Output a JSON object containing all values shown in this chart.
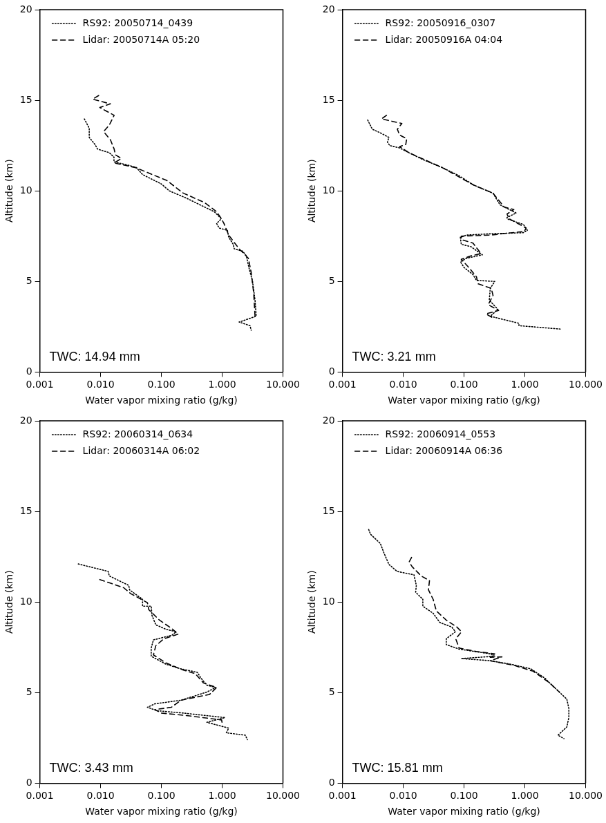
{
  "chart_data": [
    {
      "type": "line",
      "xlabel": "Water vapor mixing ratio (g/kg)",
      "ylabel": "Altitude (km)",
      "log": "x",
      "xlim": [
        0.001,
        10
      ],
      "xticks": [
        {
          "value": 0.001,
          "label": "0.001"
        },
        {
          "value": 0.01,
          "label": "0.010"
        },
        {
          "value": 0.1,
          "label": "0.100"
        },
        {
          "value": 1,
          "label": "1.000"
        },
        {
          "value": 10,
          "label": "10.000"
        }
      ],
      "ylim": [
        0,
        20
      ],
      "yticks": [
        0,
        5,
        10,
        15,
        20
      ],
      "legend": "top left",
      "marker": "none",
      "annotations": [
        "TWC: 14.94 mm"
      ],
      "series": [
        {
          "name": "RS92: 20050714_0439",
          "color": "#000000",
          "line_style": "dotted",
          "x": [
            0.0054,
            0.0065,
            0.0065,
            0.0081,
            0.0089,
            0.014,
            0.0166,
            0.0166,
            0.029,
            0.039,
            0.049,
            0.1,
            0.135,
            0.25,
            0.43,
            0.74,
            0.97,
            0.81,
            0.89,
            1.22,
            1.28,
            1.52,
            1.58,
            2.18,
            2.5,
            2.75,
            3.16,
            3.47,
            3.63,
            1.9,
            2.87,
            3.0
          ],
          "values": [
            13.97,
            13.46,
            12.95,
            12.56,
            12.31,
            12.1,
            11.86,
            11.6,
            11.41,
            11.28,
            10.9,
            10.38,
            10.0,
            9.62,
            9.23,
            8.85,
            8.46,
            8.2,
            7.95,
            7.82,
            7.44,
            7.05,
            6.8,
            6.67,
            6.41,
            5.77,
            5.0,
            3.97,
            3.08,
            2.76,
            2.56,
            2.31
          ]
        },
        {
          "name": "Lidar: 20050714A 05:20",
          "color": "#000000",
          "line_style": "dashed",
          "x": [
            0.0093,
            0.0074,
            0.0145,
            0.0097,
            0.0167,
            0.014,
            0.0112,
            0.0145,
            0.0167,
            0.0175,
            0.022,
            0.0167,
            0.038,
            0.071,
            0.122,
            0.23,
            0.51,
            0.81,
            0.97,
            1.07,
            1.28,
            1.9,
            2.7,
            3.0,
            3.3,
            3.47
          ],
          "values": [
            15.26,
            15.06,
            14.8,
            14.6,
            14.17,
            13.65,
            13.27,
            12.82,
            12.31,
            11.99,
            11.79,
            11.54,
            11.28,
            10.9,
            10.58,
            9.87,
            9.36,
            8.85,
            8.46,
            8.2,
            7.56,
            6.8,
            6.28,
            5.5,
            4.36,
            3.08
          ]
        }
      ]
    },
    {
      "type": "line",
      "xlabel": "Water vapor mixing ratio (g/kg)",
      "ylabel": "Altitude (km)",
      "log": "x",
      "xlim": [
        0.001,
        10
      ],
      "xticks": [
        {
          "value": 0.001,
          "label": "0.001"
        },
        {
          "value": 0.01,
          "label": "0.010"
        },
        {
          "value": 0.1,
          "label": "0.100"
        },
        {
          "value": 1,
          "label": "1.000"
        },
        {
          "value": 10,
          "label": "10.000"
        }
      ],
      "ylim": [
        0,
        20
      ],
      "yticks": [
        0,
        5,
        10,
        15,
        20
      ],
      "legend": "top left",
      "marker": "none",
      "annotations": [
        "TWC: 3.21 mm"
      ],
      "series": [
        {
          "name": "RS92: 20050916_0307",
          "color": "#000000",
          "line_style": "dotted",
          "x": [
            0.0026,
            0.0031,
            0.0042,
            0.0058,
            0.0055,
            0.006,
            0.0087,
            0.0125,
            0.021,
            0.044,
            0.083,
            0.144,
            0.3,
            0.39,
            0.72,
            0.51,
            0.51,
            0.95,
            1.1,
            0.94,
            0.27,
            0.11,
            0.087,
            0.09,
            0.13,
            0.2,
            0.11,
            0.087,
            0.1,
            0.14,
            0.16,
            0.32,
            0.27,
            0.26,
            0.36,
            0.27,
            0.8,
            0.8,
            3.9
          ],
          "values": [
            13.91,
            13.4,
            13.2,
            12.95,
            12.69,
            12.5,
            12.37,
            12.1,
            11.73,
            11.28,
            10.83,
            10.32,
            9.87,
            9.23,
            8.78,
            8.53,
            8.46,
            8.14,
            7.82,
            7.69,
            7.63,
            7.56,
            7.44,
            7.05,
            6.92,
            6.47,
            6.28,
            6.09,
            5.77,
            5.38,
            5.06,
            5.0,
            4.62,
            3.97,
            3.46,
            3.08,
            2.69,
            2.56,
            2.37
          ]
        },
        {
          "name": "Lidar: 20050916A 04:04",
          "color": "#000000",
          "line_style": "dashed",
          "x": [
            0.0053,
            0.0044,
            0.0095,
            0.008,
            0.0087,
            0.0114,
            0.011,
            0.0087,
            0.0125,
            0.044,
            0.144,
            0.3,
            0.46,
            0.66,
            0.51,
            0.55,
            1.05,
            0.98,
            0.27,
            0.09,
            0.09,
            0.14,
            0.19,
            0.13,
            0.09,
            0.12,
            0.16,
            0.17,
            0.28,
            0.3,
            0.25,
            0.37,
            0.23,
            0.29
          ],
          "values": [
            14.17,
            13.97,
            13.72,
            13.4,
            13.08,
            12.88,
            12.56,
            12.44,
            12.1,
            11.28,
            10.32,
            9.87,
            9.1,
            8.97,
            8.72,
            8.46,
            7.95,
            7.76,
            7.56,
            7.5,
            7.31,
            7.12,
            6.54,
            6.41,
            6.22,
            5.77,
            5.26,
            4.87,
            4.62,
            4.23,
            3.72,
            3.4,
            3.21,
            3.01
          ]
        }
      ]
    },
    {
      "type": "line",
      "xlabel": "Water vapor mixing ratio (g/kg)",
      "ylabel": "Altitude (km)",
      "log": "x",
      "xlim": [
        0.001,
        10
      ],
      "xticks": [
        {
          "value": 0.001,
          "label": "0.001"
        },
        {
          "value": 0.01,
          "label": "0.010"
        },
        {
          "value": 0.1,
          "label": "0.100"
        },
        {
          "value": 1,
          "label": "1.000"
        },
        {
          "value": 10,
          "label": "10.000"
        }
      ],
      "ylim": [
        0,
        20
      ],
      "yticks": [
        0,
        5,
        10,
        15,
        20
      ],
      "legend": "top left",
      "marker": "none",
      "annotations": [
        "TWC: 3.43 mm"
      ],
      "series": [
        {
          "name": "RS92: 20060314_0634",
          "color": "#000000",
          "line_style": "dotted",
          "x": [
            0.0043,
            0.0133,
            0.0139,
            0.029,
            0.03,
            0.049,
            0.049,
            0.068,
            0.07,
            0.081,
            0.12,
            0.175,
            0.15,
            0.074,
            0.068,
            0.068,
            0.12,
            0.21,
            0.39,
            0.45,
            0.56,
            0.78,
            0.56,
            0.21,
            0.078,
            0.059,
            0.085,
            0.23,
            1.11,
            0.56,
            1.28,
            1.17,
            2.4,
            2.6
          ],
          "values": [
            12.1,
            11.69,
            11.44,
            10.92,
            10.67,
            10.15,
            9.77,
            9.77,
            9.26,
            8.74,
            8.49,
            8.36,
            8.17,
            7.91,
            7.46,
            7.01,
            6.56,
            6.31,
            6.12,
            5.79,
            5.41,
            5.28,
            5.03,
            4.58,
            4.38,
            4.19,
            4.0,
            3.87,
            3.62,
            3.36,
            3.04,
            2.78,
            2.65,
            2.4
          ]
        },
        {
          "name": "Lidar: 20060314A 06:02",
          "color": "#000000",
          "line_style": "dashed",
          "x": [
            0.0097,
            0.024,
            0.031,
            0.059,
            0.062,
            0.093,
            0.146,
            0.19,
            0.11,
            0.081,
            0.074,
            0.12,
            0.23,
            0.36,
            0.49,
            0.81,
            0.62,
            0.21,
            0.146,
            0.078,
            0.1,
            0.25,
            0.98,
            1.0
          ],
          "values": [
            11.24,
            10.79,
            10.47,
            9.96,
            9.58,
            9.0,
            8.55,
            8.23,
            7.97,
            7.59,
            7.08,
            6.63,
            6.24,
            6.05,
            5.54,
            5.28,
            4.9,
            4.58,
            4.19,
            4.06,
            3.87,
            3.74,
            3.49,
            3.29
          ]
        }
      ]
    },
    {
      "type": "line",
      "xlabel": "Water vapor mixing ratio (g/kg)",
      "ylabel": "Altitude (km)",
      "log": "x",
      "xlim": [
        0.001,
        10
      ],
      "xticks": [
        {
          "value": 0.001,
          "label": "0.001"
        },
        {
          "value": 0.01,
          "label": "0.010"
        },
        {
          "value": 0.1,
          "label": "0.100"
        },
        {
          "value": 1,
          "label": "1.000"
        },
        {
          "value": 10,
          "label": "10.000"
        }
      ],
      "ylim": [
        0,
        20
      ],
      "yticks": [
        0,
        5,
        10,
        15,
        20
      ],
      "legend": "top left",
      "marker": "none",
      "annotations": [
        "TWC: 15.81 mm"
      ],
      "series": [
        {
          "name": "RS92: 20060914_0553",
          "color": "#000000",
          "line_style": "dotted",
          "x": [
            0.0027,
            0.0029,
            0.0042,
            0.0048,
            0.0058,
            0.0079,
            0.015,
            0.0164,
            0.016,
            0.021,
            0.021,
            0.031,
            0.04,
            0.063,
            0.072,
            0.051,
            0.051,
            0.083,
            0.27,
            0.32,
            0.091,
            0.27,
            0.6,
            1.26,
            2.15,
            2.55,
            3.7,
            4.9,
            5.3,
            5.3,
            4.9,
            3.5,
            4.4
          ],
          "values": [
            14.0,
            13.74,
            13.23,
            12.72,
            12.08,
            11.69,
            11.5,
            10.92,
            10.54,
            10.15,
            9.77,
            9.38,
            8.87,
            8.62,
            8.36,
            7.97,
            7.65,
            7.4,
            7.14,
            7.01,
            6.88,
            6.76,
            6.56,
            6.31,
            5.79,
            5.54,
            5.03,
            4.64,
            4.13,
            3.62,
            3.1,
            2.65,
            2.46
          ]
        },
        {
          "name": "Lidar: 20060914A 06:36",
          "color": "#000000",
          "line_style": "dashed",
          "x": [
            0.0137,
            0.0125,
            0.014,
            0.0197,
            0.027,
            0.026,
            0.031,
            0.035,
            0.051,
            0.076,
            0.091,
            0.073,
            0.083,
            0.157,
            0.32,
            0.27,
            0.42,
            0.27,
            0.67,
            1.37,
            2.55,
            3.7
          ],
          "values": [
            12.46,
            12.21,
            11.95,
            11.44,
            11.18,
            10.67,
            10.15,
            9.51,
            9.0,
            8.62,
            8.36,
            7.97,
            7.46,
            7.27,
            7.14,
            6.95,
            6.97,
            6.76,
            6.5,
            6.18,
            5.54,
            5.03
          ]
        }
      ]
    }
  ]
}
